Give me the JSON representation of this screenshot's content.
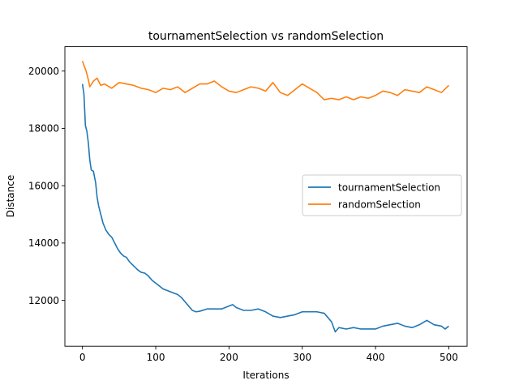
{
  "chart_data": {
    "type": "line",
    "title": "tournamentSelection vs randomSelection",
    "xlabel": "Iterations",
    "ylabel": "Distance",
    "xlim": [
      -24,
      525
    ],
    "ylim": [
      10400,
      20850
    ],
    "xticks": [
      0,
      100,
      200,
      300,
      400,
      500
    ],
    "yticks": [
      12000,
      14000,
      16000,
      18000,
      20000
    ],
    "grid": false,
    "legend_position": "center-right",
    "series": [
      {
        "name": "tournamentSelection",
        "color": "#1f77b4",
        "points": [
          [
            0,
            19550
          ],
          [
            2,
            19200
          ],
          [
            4,
            18100
          ],
          [
            6,
            17900
          ],
          [
            8,
            17500
          ],
          [
            10,
            16900
          ],
          [
            12,
            16550
          ],
          [
            15,
            16500
          ],
          [
            18,
            16100
          ],
          [
            20,
            15600
          ],
          [
            22,
            15300
          ],
          [
            25,
            15000
          ],
          [
            28,
            14700
          ],
          [
            32,
            14450
          ],
          [
            36,
            14300
          ],
          [
            40,
            14200
          ],
          [
            44,
            14000
          ],
          [
            48,
            13800
          ],
          [
            52,
            13650
          ],
          [
            56,
            13550
          ],
          [
            60,
            13500
          ],
          [
            64,
            13350
          ],
          [
            68,
            13250
          ],
          [
            72,
            13150
          ],
          [
            76,
            13050
          ],
          [
            80,
            12980
          ],
          [
            85,
            12950
          ],
          [
            90,
            12850
          ],
          [
            95,
            12700
          ],
          [
            100,
            12600
          ],
          [
            105,
            12500
          ],
          [
            110,
            12400
          ],
          [
            115,
            12350
          ],
          [
            120,
            12300
          ],
          [
            125,
            12250
          ],
          [
            130,
            12200
          ],
          [
            135,
            12100
          ],
          [
            140,
            11950
          ],
          [
            145,
            11800
          ],
          [
            150,
            11650
          ],
          [
            155,
            11600
          ],
          [
            160,
            11620
          ],
          [
            170,
            11700
          ],
          [
            180,
            11700
          ],
          [
            190,
            11700
          ],
          [
            200,
            11800
          ],
          [
            205,
            11850
          ],
          [
            210,
            11750
          ],
          [
            220,
            11650
          ],
          [
            230,
            11650
          ],
          [
            240,
            11700
          ],
          [
            250,
            11600
          ],
          [
            260,
            11450
          ],
          [
            270,
            11400
          ],
          [
            280,
            11450
          ],
          [
            290,
            11500
          ],
          [
            300,
            11600
          ],
          [
            310,
            11600
          ],
          [
            320,
            11600
          ],
          [
            330,
            11550
          ],
          [
            335,
            11400
          ],
          [
            340,
            11250
          ],
          [
            345,
            10900
          ],
          [
            350,
            11050
          ],
          [
            360,
            11000
          ],
          [
            370,
            11050
          ],
          [
            380,
            11000
          ],
          [
            390,
            11000
          ],
          [
            400,
            11000
          ],
          [
            410,
            11100
          ],
          [
            420,
            11150
          ],
          [
            430,
            11200
          ],
          [
            440,
            11100
          ],
          [
            450,
            11050
          ],
          [
            460,
            11150
          ],
          [
            470,
            11300
          ],
          [
            480,
            11150
          ],
          [
            490,
            11100
          ],
          [
            495,
            11000
          ],
          [
            500,
            11100
          ]
        ]
      },
      {
        "name": "randomSelection",
        "color": "#ff7f0e",
        "points": [
          [
            0,
            20350
          ],
          [
            2,
            20200
          ],
          [
            5,
            20000
          ],
          [
            8,
            19700
          ],
          [
            10,
            19450
          ],
          [
            15,
            19650
          ],
          [
            20,
            19750
          ],
          [
            25,
            19500
          ],
          [
            30,
            19550
          ],
          [
            40,
            19400
          ],
          [
            50,
            19600
          ],
          [
            60,
            19550
          ],
          [
            70,
            19500
          ],
          [
            80,
            19400
          ],
          [
            90,
            19350
          ],
          [
            100,
            19250
          ],
          [
            110,
            19400
          ],
          [
            120,
            19350
          ],
          [
            130,
            19450
          ],
          [
            140,
            19250
          ],
          [
            150,
            19400
          ],
          [
            160,
            19550
          ],
          [
            170,
            19550
          ],
          [
            180,
            19650
          ],
          [
            190,
            19450
          ],
          [
            200,
            19300
          ],
          [
            210,
            19250
          ],
          [
            220,
            19350
          ],
          [
            230,
            19450
          ],
          [
            240,
            19400
          ],
          [
            250,
            19300
          ],
          [
            260,
            19600
          ],
          [
            270,
            19250
          ],
          [
            280,
            19150
          ],
          [
            290,
            19350
          ],
          [
            300,
            19550
          ],
          [
            310,
            19400
          ],
          [
            320,
            19250
          ],
          [
            330,
            19000
          ],
          [
            340,
            19050
          ],
          [
            350,
            19000
          ],
          [
            360,
            19100
          ],
          [
            370,
            19000
          ],
          [
            380,
            19100
          ],
          [
            390,
            19050
          ],
          [
            400,
            19150
          ],
          [
            410,
            19300
          ],
          [
            420,
            19250
          ],
          [
            430,
            19150
          ],
          [
            440,
            19350
          ],
          [
            450,
            19300
          ],
          [
            460,
            19250
          ],
          [
            470,
            19450
          ],
          [
            480,
            19350
          ],
          [
            490,
            19250
          ],
          [
            500,
            19500
          ]
        ]
      }
    ]
  }
}
